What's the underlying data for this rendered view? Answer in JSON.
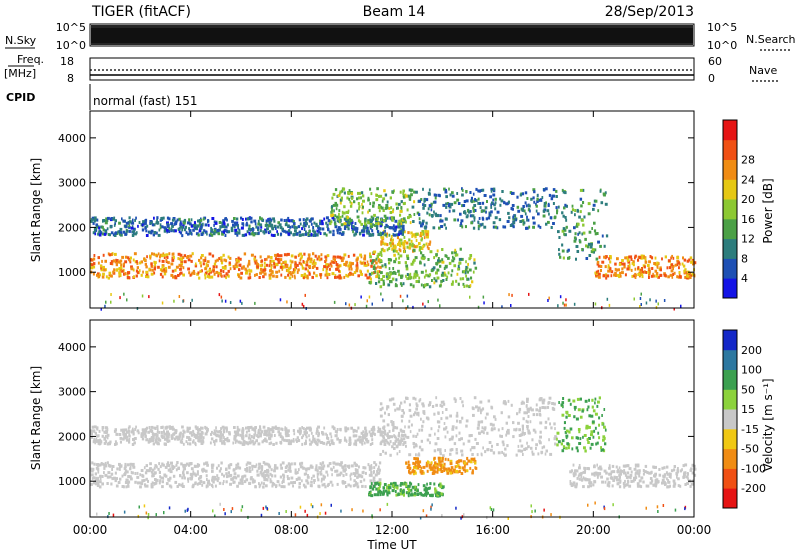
{
  "header": {
    "left": "TIGER (fitACF)",
    "center": "Beam 14",
    "right": "28/Sep/2013"
  },
  "nsky": {
    "label": "N.Sky",
    "ticks": [
      "10^5",
      "10^0"
    ],
    "right_label": "N.Search",
    "right_ticks": [
      "10^5",
      "10^0"
    ]
  },
  "freq": {
    "label": "Freq.",
    "unit": "[MHz]",
    "ticks": [
      "18",
      "8"
    ],
    "right_label": "Nave",
    "right_ticks": [
      "60",
      "0"
    ]
  },
  "cpid": {
    "label": "CPID",
    "text": "normal (fast) 151"
  },
  "chart_data": [
    {
      "type": "heatmap",
      "title": "",
      "ylabel": "Slant Range [km]",
      "xlabel": "",
      "xlim": [
        "00:00",
        "24:00"
      ],
      "ylim": [
        200,
        4600
      ],
      "yticks": [
        "1000",
        "2000",
        "3000",
        "4000"
      ],
      "grid": false,
      "colorbar": {
        "label": "Power [dB]",
        "ticks": [
          "4",
          "8",
          "12",
          "16",
          "20",
          "24",
          "28"
        ],
        "colors": [
          "#1414e6",
          "#1e50b4",
          "#2d7d7d",
          "#4ba046",
          "#8cc832",
          "#e6c814",
          "#f08c14",
          "#f05014",
          "#e61414"
        ]
      },
      "regions": [
        {
          "name": "lower band",
          "t": [
            0,
            11.5
          ],
          "range": [
            900,
            1450
          ],
          "level": 24
        },
        {
          "name": "lower band",
          "t": [
            11.5,
            13.5
          ],
          "range": [
            1500,
            1950
          ],
          "level": 20
        },
        {
          "name": "upper band",
          "t": [
            0,
            12.5
          ],
          "range": [
            1850,
            2250
          ],
          "level": 6
        },
        {
          "name": "rising patch",
          "t": [
            9.5,
            13
          ],
          "range": [
            2100,
            2900
          ],
          "level": 14
        },
        {
          "name": "ridge",
          "t": [
            13,
            18.5
          ],
          "range": [
            2000,
            2900
          ],
          "level": 7
        },
        {
          "name": "descending trace",
          "t": [
            18.5,
            20.5
          ],
          "range": [
            1300,
            2900
          ],
          "level": 10
        },
        {
          "name": "evening band",
          "t": [
            20,
            24
          ],
          "range": [
            900,
            1400
          ],
          "level": 25
        },
        {
          "name": "isolated patch",
          "t": [
            11,
            15.3
          ],
          "range": [
            700,
            1550
          ],
          "level": 14
        }
      ]
    },
    {
      "type": "heatmap",
      "title": "",
      "ylabel": "Slant Range [km]",
      "xlabel": "Time UT",
      "xlim": [
        "00:00",
        "24:00"
      ],
      "ylim": [
        200,
        4600
      ],
      "yticks": [
        "1000",
        "2000",
        "3000",
        "4000"
      ],
      "xticks": [
        "00:00",
        "04:00",
        "08:00",
        "12:00",
        "16:00",
        "20:00",
        "00:00"
      ],
      "grid": false,
      "colorbar": {
        "label": "Velocity [m s⁻¹]",
        "ticks": [
          "200",
          "100",
          "50",
          "15",
          "-15",
          "-50",
          "-100",
          "-200"
        ],
        "colors": [
          "#1428c8",
          "#2d78a0",
          "#3ca050",
          "#8cd23c",
          "#c8c8c8",
          "#f0c814",
          "#f08c14",
          "#f05014",
          "#e61414"
        ]
      },
      "regions": [
        {
          "name": "lower band",
          "t": [
            0,
            11.5
          ],
          "range": [
            900,
            1450
          ],
          "level": 0
        },
        {
          "name": "upper band",
          "t": [
            0,
            12.5
          ],
          "range": [
            1850,
            2250
          ],
          "level": 0
        },
        {
          "name": "ridge",
          "t": [
            11.5,
            18.5
          ],
          "range": [
            1600,
            2900
          ],
          "level": 0
        },
        {
          "name": "evening band",
          "t": [
            19,
            24
          ],
          "range": [
            900,
            1400
          ],
          "level": 0
        },
        {
          "name": "isolated patch",
          "t": [
            12.5,
            15.3
          ],
          "range": [
            1200,
            1550
          ],
          "level": -60
        },
        {
          "name": "isolated patch",
          "t": [
            11,
            14
          ],
          "range": [
            700,
            1000
          ],
          "level": 40
        },
        {
          "name": "descending trace",
          "t": [
            18.5,
            20.5
          ],
          "range": [
            1700,
            2900
          ],
          "level": 35
        }
      ]
    }
  ]
}
